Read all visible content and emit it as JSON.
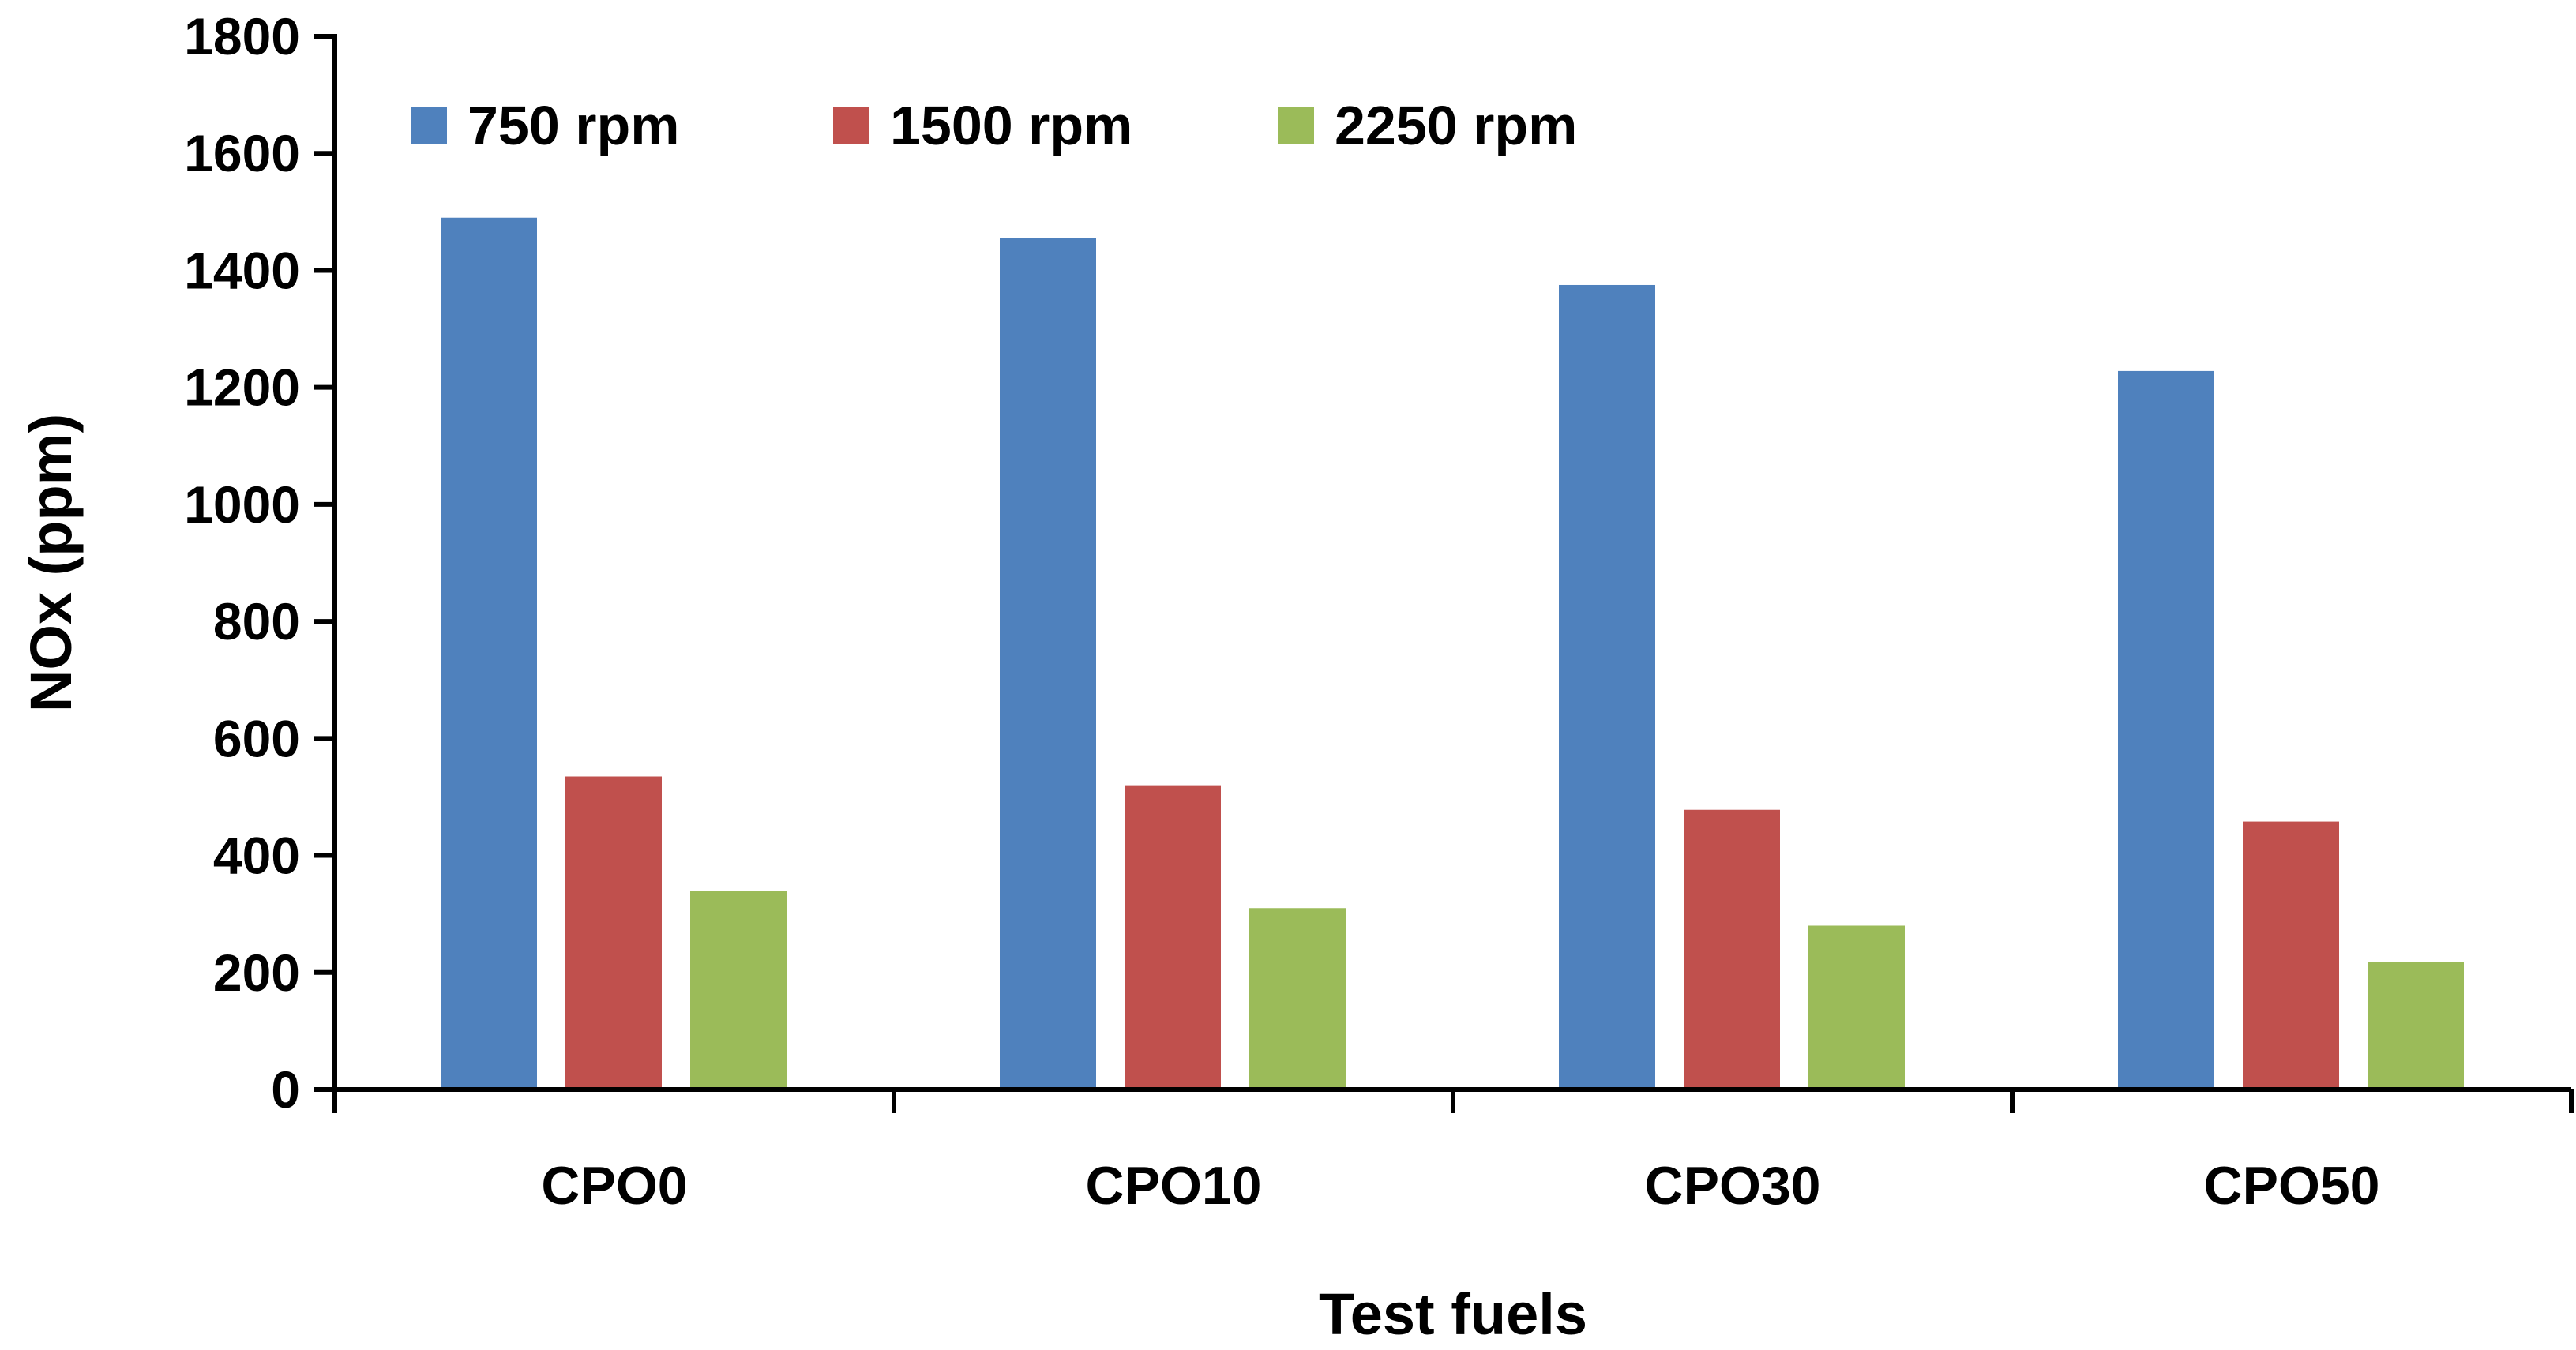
{
  "chart_data": {
    "type": "bar",
    "title": "",
    "xlabel": "Test fuels",
    "ylabel": "NOx (ppm)",
    "ylim": [
      0,
      1800
    ],
    "yticks": [
      0,
      200,
      400,
      600,
      800,
      1000,
      1200,
      1400,
      1600,
      1800
    ],
    "ytick_labels": [
      "0",
      "200",
      "400",
      "600",
      "800",
      "1000",
      "1200",
      "1400",
      "1600",
      "1800"
    ],
    "categories": [
      "CPO0",
      "CPO10",
      "CPO30",
      "CPO50"
    ],
    "grid": false,
    "legend_position": "top-left",
    "series": [
      {
        "name": "750 rpm",
        "color": "#4F81BD",
        "values": [
          1490,
          1455,
          1375,
          1228
        ]
      },
      {
        "name": "1500 rpm",
        "color": "#C0504D",
        "values": [
          535,
          520,
          478,
          458
        ]
      },
      {
        "name": "2250 rpm",
        "color": "#9BBB59",
        "values": [
          340,
          310,
          280,
          218
        ]
      }
    ]
  }
}
